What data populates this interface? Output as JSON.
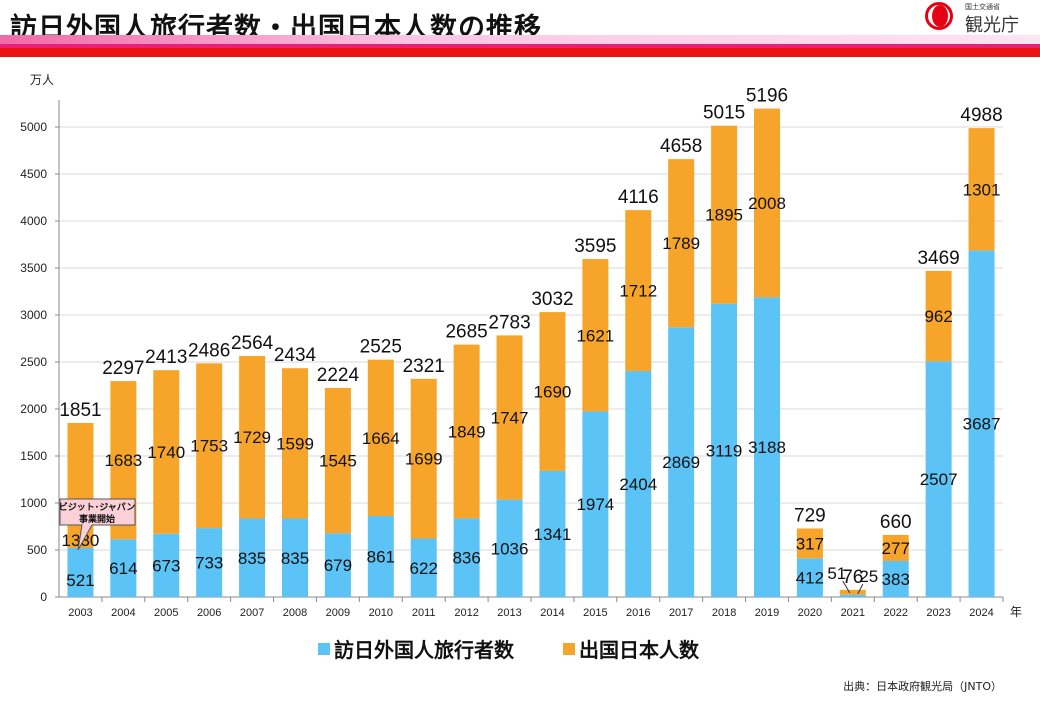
{
  "header": {
    "title": "訪日外国人旅行者数・出国日本人数の推移",
    "logo_ministry": "国土交通省",
    "logo_agency": "観光庁"
  },
  "chart_data": {
    "type": "bar",
    "stacked": true,
    "title": "",
    "ylabel": "万人",
    "xlabel": "年",
    "ylim": [
      0,
      5000
    ],
    "yticks": [
      0,
      500,
      1000,
      1500,
      2000,
      2500,
      3000,
      3500,
      4000,
      4500,
      5000
    ],
    "grid": true,
    "legend_position": "bottom",
    "categories": [
      "2003",
      "2004",
      "2005",
      "2006",
      "2007",
      "2008",
      "2009",
      "2010",
      "2011",
      "2012",
      "2013",
      "2014",
      "2015",
      "2016",
      "2017",
      "2018",
      "2019",
      "2020",
      "2021",
      "2022",
      "2023",
      "2024"
    ],
    "series": [
      {
        "name": "訪日外国人旅行者数",
        "color": "#5bc3f5",
        "values": [
          521,
          614,
          673,
          733,
          835,
          835,
          679,
          861,
          622,
          836,
          1036,
          1341,
          1974,
          2404,
          2869,
          3119,
          3188,
          412,
          25,
          383,
          2507,
          3687
        ]
      },
      {
        "name": "出国日本人数",
        "color": "#f7a52a",
        "values": [
          1330,
          1683,
          1740,
          1753,
          1729,
          1599,
          1545,
          1664,
          1699,
          1849,
          1747,
          1690,
          1621,
          1712,
          1789,
          1895,
          2008,
          317,
          51,
          277,
          962,
          1301
        ]
      }
    ],
    "totals": [
      1851,
      2297,
      2413,
      2486,
      2564,
      2434,
      2224,
      2525,
      2321,
      2685,
      2783,
      3032,
      3595,
      4116,
      4658,
      5015,
      5196,
      729,
      76,
      660,
      3469,
      4988
    ],
    "annotation": {
      "text_line1": "ビジット･ジャパン",
      "text_line2": "事業開始",
      "year": "2003"
    }
  },
  "source": "出典：日本政府観光局（JNTO）"
}
